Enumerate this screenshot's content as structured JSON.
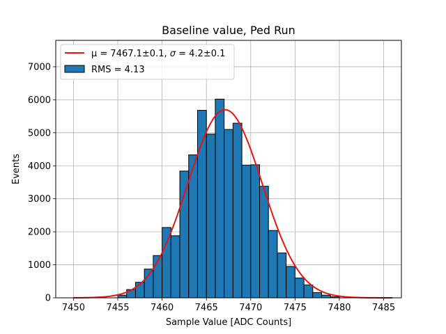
{
  "chart_data": {
    "type": "bar",
    "title": "Baseline value, Ped Run",
    "xlabel": "Sample Value [ADC Counts]",
    "ylabel": "Events",
    "xlim": [
      7448,
      7487
    ],
    "ylim": [
      0,
      7800
    ],
    "grid": true,
    "legend_position": "top-left",
    "xticks": [
      7450,
      7455,
      7460,
      7465,
      7470,
      7475,
      7480,
      7485
    ],
    "yticks": [
      0,
      1000,
      2000,
      3000,
      4000,
      5000,
      6000,
      7000
    ],
    "bin_width": 1,
    "bins": [
      {
        "x0": 7455,
        "count": 80
      },
      {
        "x0": 7456,
        "count": 250
      },
      {
        "x0": 7457,
        "count": 470
      },
      {
        "x0": 7458,
        "count": 870
      },
      {
        "x0": 7459,
        "count": 1280
      },
      {
        "x0": 7460,
        "count": 2130
      },
      {
        "x0": 7461,
        "count": 1880
      },
      {
        "x0": 7462,
        "count": 3840
      },
      {
        "x0": 7463,
        "count": 4330
      },
      {
        "x0": 7464,
        "count": 5680
      },
      {
        "x0": 7465,
        "count": 4960
      },
      {
        "x0": 7466,
        "count": 6020
      },
      {
        "x0": 7467,
        "count": 5100
      },
      {
        "x0": 7468,
        "count": 5290
      },
      {
        "x0": 7469,
        "count": 4020
      },
      {
        "x0": 7470,
        "count": 4030
      },
      {
        "x0": 7471,
        "count": 3380
      },
      {
        "x0": 7472,
        "count": 2040
      },
      {
        "x0": 7473,
        "count": 1360
      },
      {
        "x0": 7474,
        "count": 950
      },
      {
        "x0": 7475,
        "count": 600
      },
      {
        "x0": 7476,
        "count": 390
      },
      {
        "x0": 7477,
        "count": 160
      },
      {
        "x0": 7478,
        "count": 80
      },
      {
        "x0": 7479,
        "count": 30
      }
    ],
    "fit": {
      "type": "gaussian",
      "mu": 7467.1,
      "sigma": 4.2,
      "amplitude": 5700,
      "x_range": [
        7450,
        7486
      ],
      "color": "#e8140f"
    },
    "bar_color": "#1f77b4",
    "bar_edge_color": "#000000",
    "legend": [
      {
        "kind": "line",
        "label_prefix": "μ = 7467.1±0.1, ",
        "label_sigma": "σ",
        "label_suffix": " = 4.2±0.1",
        "color": "#e8140f"
      },
      {
        "kind": "patch",
        "label": "RMS = 4.13",
        "color": "#1f77b4"
      }
    ]
  }
}
